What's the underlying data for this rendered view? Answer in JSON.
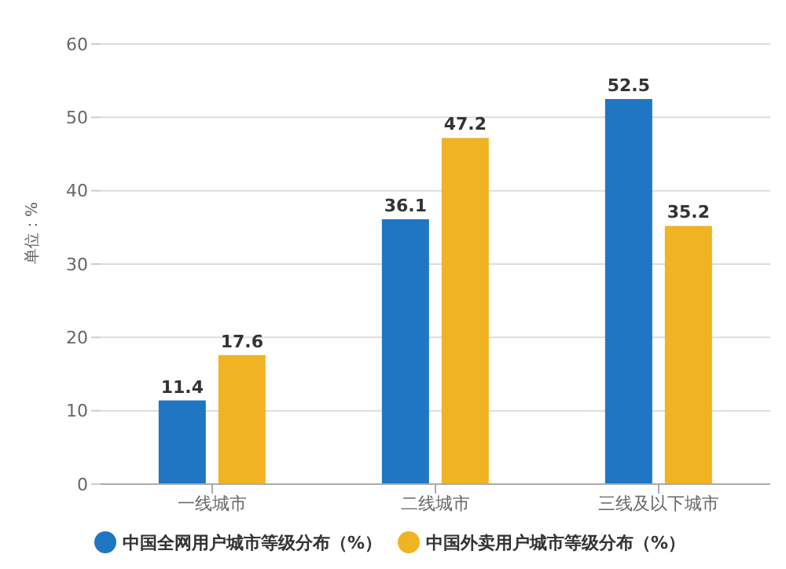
{
  "chart_data": {
    "type": "bar",
    "ylabel": "单位：%",
    "categories": [
      "一线城市",
      "二线城市",
      "三线及以下城市"
    ],
    "series": [
      {
        "name": "中国全网用户城市等级分布（%）",
        "color": "#1f77c4",
        "values": [
          11.4,
          36.1,
          52.5
        ]
      },
      {
        "name": "中国外卖用户城市等级分布（%）",
        "color": "#f0b323",
        "values": [
          17.6,
          47.2,
          35.2
        ]
      }
    ],
    "ylim": [
      0,
      60
    ],
    "yticks": [
      0,
      10,
      20,
      30,
      40,
      50,
      60
    ],
    "grid": "y",
    "legend": "bottom",
    "data_labels": true
  }
}
